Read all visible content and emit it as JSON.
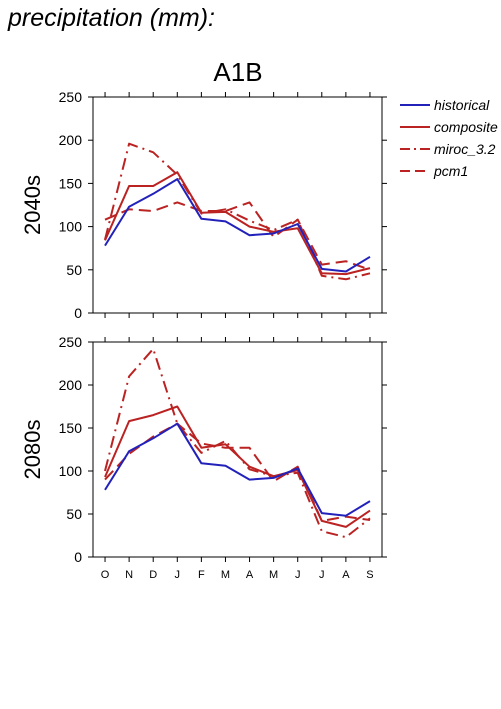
{
  "page": {
    "title": "precipitation (mm):"
  },
  "colors": {
    "historical": "#2222bb",
    "scenario": "#bb2222",
    "axis": "#000000"
  },
  "chart_data": [
    {
      "type": "line",
      "title": "A1B",
      "ylabel": "2040s",
      "xlabel": "",
      "categories": [
        "O",
        "N",
        "D",
        "J",
        "F",
        "M",
        "A",
        "M",
        "J",
        "J",
        "A",
        "S"
      ],
      "ylim": [
        0,
        250
      ],
      "yticks": [
        0,
        50,
        100,
        150,
        200,
        250
      ],
      "legend_position": "right",
      "series": [
        {
          "name": "historical",
          "style": "solid",
          "color": "#2222bb",
          "values": [
            78,
            123,
            138,
            155,
            109,
            106,
            90,
            92,
            103,
            51,
            48,
            65
          ]
        },
        {
          "name": "composite",
          "style": "solid",
          "color": "#bb2222",
          "values": [
            84,
            147,
            147,
            163,
            116,
            117,
            100,
            94,
            98,
            46,
            45,
            52
          ]
        },
        {
          "name": "miroc_3.2",
          "style": "dashdot",
          "color": "#bb2222",
          "values": [
            85,
            196,
            186,
            160,
            115,
            120,
            107,
            96,
            108,
            43,
            39,
            46
          ]
        },
        {
          "name": "pcm1",
          "style": "dashed",
          "color": "#bb2222",
          "values": [
            108,
            120,
            118,
            128,
            118,
            118,
            128,
            88,
            108,
            56,
            60,
            50
          ]
        }
      ]
    },
    {
      "type": "line",
      "title": "",
      "ylabel": "2080s",
      "xlabel": "",
      "categories": [
        "O",
        "N",
        "D",
        "J",
        "F",
        "M",
        "A",
        "M",
        "J",
        "J",
        "A",
        "S"
      ],
      "ylim": [
        0,
        250
      ],
      "yticks": [
        0,
        50,
        100,
        150,
        200,
        250
      ],
      "series": [
        {
          "name": "historical",
          "style": "solid",
          "color": "#2222bb",
          "values": [
            78,
            123,
            138,
            155,
            109,
            106,
            90,
            92,
            103,
            51,
            48,
            65
          ]
        },
        {
          "name": "composite",
          "style": "solid",
          "color": "#bb2222",
          "values": [
            93,
            158,
            165,
            175,
            127,
            131,
            105,
            94,
            101,
            42,
            35,
            54
          ]
        },
        {
          "name": "miroc_3.2",
          "style": "dashdot",
          "color": "#bb2222",
          "values": [
            100,
            210,
            242,
            155,
            121,
            135,
            102,
            94,
            98,
            30,
            23,
            45
          ]
        },
        {
          "name": "pcm1",
          "style": "dashed",
          "color": "#bb2222",
          "values": [
            90,
            120,
            140,
            155,
            132,
            127,
            127,
            88,
            105,
            42,
            47,
            43
          ]
        }
      ]
    }
  ]
}
